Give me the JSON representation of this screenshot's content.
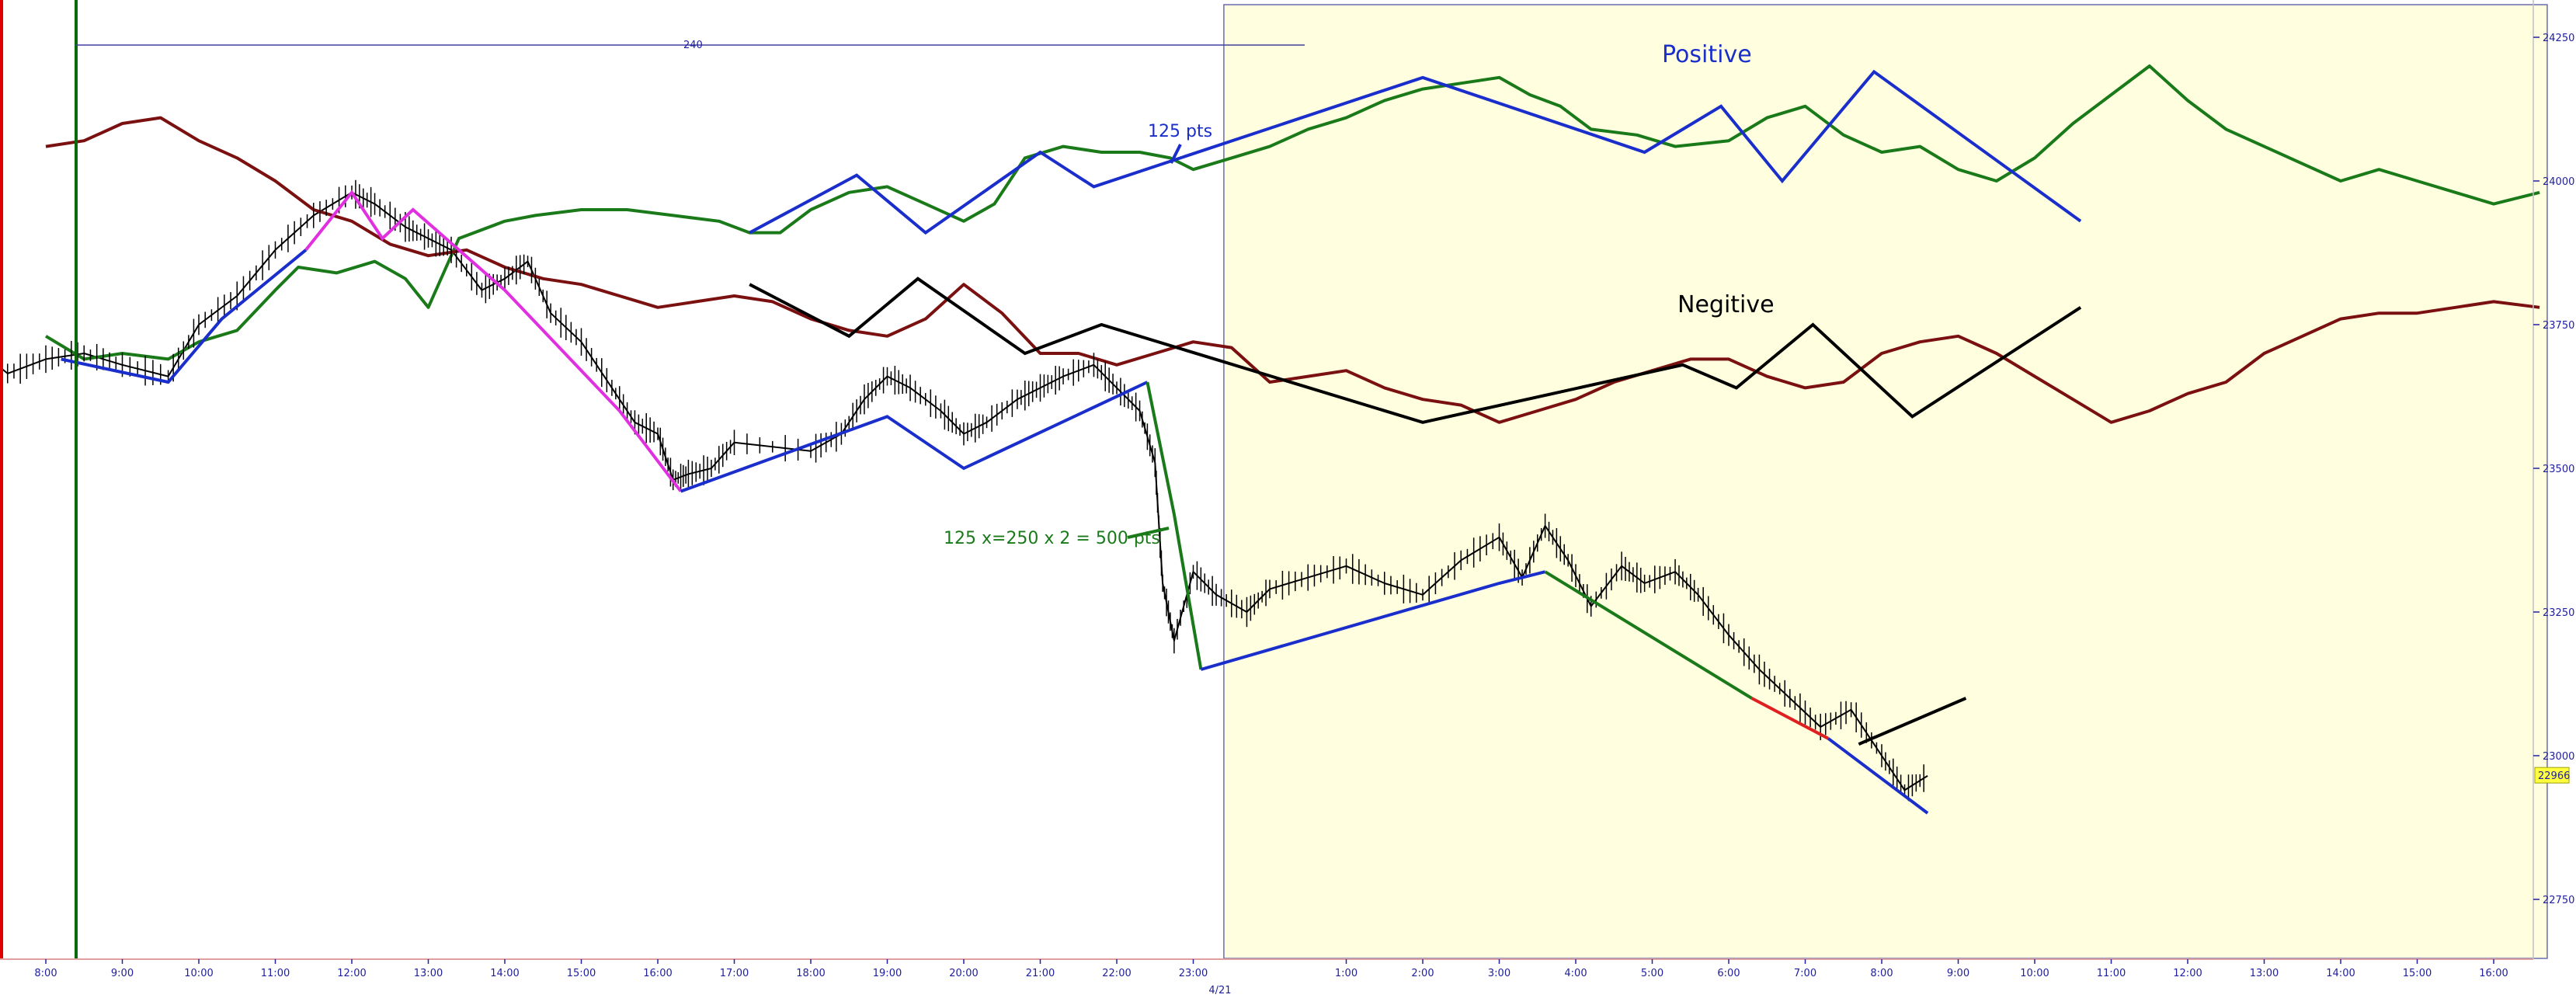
{
  "chart_data": {
    "type": "line",
    "title": "",
    "xlabel": "",
    "ylabel": "",
    "ylim": [
      22680,
      24330
    ],
    "y_ticks": [
      "24250",
      "24000",
      "23750",
      "23500",
      "23250",
      "23000",
      "22750"
    ],
    "x_ticks": [
      "8:00",
      "9:00",
      "10:00",
      "11:00",
      "12:00",
      "13:00",
      "14:00",
      "15:00",
      "16:00",
      "17:00",
      "18:00",
      "19:00",
      "20:00",
      "21:00",
      "22:00",
      "23:00",
      "1:00",
      "2:00",
      "3:00",
      "4:00",
      "5:00",
      "6:00",
      "7:00",
      "8:00",
      "9:00",
      "10:00",
      "11:00",
      "12:00",
      "13:00",
      "14:00",
      "15:00",
      "16:00"
    ],
    "x_tick_hours": [
      8,
      9,
      10,
      11,
      12,
      13,
      14,
      15,
      16,
      17,
      18,
      19,
      20,
      21,
      22,
      23,
      25,
      26,
      27,
      28,
      29,
      30,
      31,
      32,
      33,
      34,
      35,
      36,
      37,
      38,
      39,
      40
    ],
    "date_label": "4/21",
    "date_label_hour": 23.35,
    "last_price": "22966",
    "range_bar_label": "240",
    "highlight_region": {
      "from_hour": 23.4,
      "to_hour": 40.7,
      "color": "#ffffe0"
    },
    "colors": {
      "price": "#000000",
      "positive": "#1a7a1a",
      "negative": "#7a1010",
      "trend_blue": "#1a2ecc",
      "trend_black": "#000000",
      "magenta": "#e030e0",
      "green_line": "#1a7a1a",
      "red": "#e02020",
      "axis": "#2020a0",
      "session_green": "#0a6a0a",
      "session_red": "#e00000",
      "tag_bg": "#ffff40"
    },
    "annotations": {
      "positive_label": "Positive",
      "negative_label": "Negitive",
      "pts_label": "125 pts",
      "calc_label": "125 x=250 x 2 = 500 pts"
    },
    "series": [
      {
        "key": "price",
        "points": [
          [
            7.0,
            23720
          ],
          [
            7.5,
            23665
          ],
          [
            8.0,
            23690
          ],
          [
            8.5,
            23700
          ],
          [
            9.0,
            23680
          ],
          [
            9.6,
            23660
          ],
          [
            10.0,
            23750
          ],
          [
            10.5,
            23800
          ],
          [
            11.0,
            23880
          ],
          [
            11.5,
            23940
          ],
          [
            12.0,
            23980
          ],
          [
            12.3,
            23960
          ],
          [
            12.7,
            23920
          ],
          [
            13.0,
            23900
          ],
          [
            13.3,
            23880
          ],
          [
            13.7,
            23810
          ],
          [
            14.0,
            23830
          ],
          [
            14.3,
            23860
          ],
          [
            14.6,
            23770
          ],
          [
            15.0,
            23720
          ],
          [
            15.4,
            23640
          ],
          [
            15.7,
            23580
          ],
          [
            16.0,
            23560
          ],
          [
            16.2,
            23480
          ],
          [
            16.4,
            23490
          ],
          [
            16.7,
            23500
          ],
          [
            17.0,
            23545
          ],
          [
            18.0,
            23530
          ],
          [
            18.4,
            23560
          ],
          [
            18.7,
            23620
          ],
          [
            19.0,
            23660
          ],
          [
            19.3,
            23640
          ],
          [
            19.7,
            23600
          ],
          [
            20.0,
            23560
          ],
          [
            20.3,
            23580
          ],
          [
            20.7,
            23620
          ],
          [
            21.0,
            23640
          ],
          [
            21.3,
            23660
          ],
          [
            21.7,
            23680
          ],
          [
            22.0,
            23640
          ],
          [
            22.3,
            23600
          ],
          [
            22.5,
            23510
          ],
          [
            22.6,
            23300
          ],
          [
            22.75,
            23200
          ],
          [
            23.0,
            23320
          ],
          [
            23.3,
            23280
          ],
          [
            23.7,
            23250
          ],
          [
            24.0,
            23290
          ],
          [
            24.5,
            23310
          ],
          [
            25.0,
            23330
          ],
          [
            25.5,
            23300
          ],
          [
            26.0,
            23280
          ],
          [
            26.5,
            23340
          ],
          [
            27.0,
            23380
          ],
          [
            27.3,
            23310
          ],
          [
            27.6,
            23400
          ],
          [
            27.9,
            23340
          ],
          [
            28.2,
            23260
          ],
          [
            28.6,
            23330
          ],
          [
            28.9,
            23300
          ],
          [
            29.3,
            23320
          ],
          [
            29.6,
            23280
          ],
          [
            30.0,
            23210
          ],
          [
            30.4,
            23150
          ],
          [
            30.8,
            23100
          ],
          [
            31.2,
            23050
          ],
          [
            31.6,
            23080
          ],
          [
            32.0,
            23000
          ],
          [
            32.3,
            22940
          ],
          [
            32.6,
            22965
          ]
        ]
      },
      {
        "key": "positive",
        "points": [
          [
            8.0,
            23730
          ],
          [
            8.5,
            23690
          ],
          [
            9.0,
            23700
          ],
          [
            9.6,
            23690
          ],
          [
            10.0,
            23720
          ],
          [
            10.5,
            23740
          ],
          [
            11.0,
            23810
          ],
          [
            11.3,
            23850
          ],
          [
            11.8,
            23840
          ],
          [
            12.3,
            23860
          ],
          [
            12.7,
            23830
          ],
          [
            13.0,
            23780
          ],
          [
            13.4,
            23900
          ],
          [
            14.0,
            23930
          ],
          [
            14.4,
            23940
          ],
          [
            15.0,
            23950
          ],
          [
            15.6,
            23950
          ],
          [
            16.2,
            23940
          ],
          [
            16.8,
            23930
          ],
          [
            17.2,
            23910
          ],
          [
            17.6,
            23910
          ],
          [
            18.0,
            23950
          ],
          [
            18.5,
            23980
          ],
          [
            19.0,
            23990
          ],
          [
            19.5,
            23960
          ],
          [
            20.0,
            23930
          ],
          [
            20.4,
            23960
          ],
          [
            20.8,
            24040
          ],
          [
            21.3,
            24060
          ],
          [
            21.8,
            24050
          ],
          [
            22.3,
            24050
          ],
          [
            22.7,
            24040
          ],
          [
            23.0,
            24020
          ],
          [
            23.5,
            24040
          ],
          [
            24.0,
            24060
          ],
          [
            24.5,
            24090
          ],
          [
            25.0,
            24110
          ],
          [
            25.5,
            24140
          ],
          [
            26.0,
            24160
          ],
          [
            26.5,
            24170
          ],
          [
            27.0,
            24180
          ],
          [
            27.4,
            24150
          ],
          [
            27.8,
            24130
          ],
          [
            28.2,
            24090
          ],
          [
            28.8,
            24080
          ],
          [
            29.3,
            24060
          ],
          [
            30.0,
            24070
          ],
          [
            30.5,
            24110
          ],
          [
            31.0,
            24130
          ],
          [
            31.5,
            24080
          ],
          [
            32.0,
            24050
          ],
          [
            32.5,
            24060
          ],
          [
            33.0,
            24020
          ],
          [
            33.5,
            24000
          ],
          [
            34.0,
            24040
          ],
          [
            34.5,
            24100
          ],
          [
            35.0,
            24150
          ],
          [
            35.5,
            24200
          ],
          [
            36.0,
            24140
          ],
          [
            36.5,
            24090
          ],
          [
            37.0,
            24060
          ],
          [
            37.5,
            24030
          ],
          [
            38.0,
            24000
          ],
          [
            38.5,
            24020
          ],
          [
            39.0,
            24000
          ],
          [
            39.5,
            23980
          ],
          [
            40.0,
            23960
          ],
          [
            40.6,
            23980
          ]
        ]
      },
      {
        "key": "negative",
        "points": [
          [
            8.0,
            24060
          ],
          [
            8.5,
            24070
          ],
          [
            9.0,
            24100
          ],
          [
            9.5,
            24110
          ],
          [
            10.0,
            24070
          ],
          [
            10.5,
            24040
          ],
          [
            11.0,
            24000
          ],
          [
            11.5,
            23950
          ],
          [
            12.0,
            23930
          ],
          [
            12.5,
            23890
          ],
          [
            13.0,
            23870
          ],
          [
            13.5,
            23880
          ],
          [
            14.0,
            23850
          ],
          [
            14.5,
            23830
          ],
          [
            15.0,
            23820
          ],
          [
            15.5,
            23800
          ],
          [
            16.0,
            23780
          ],
          [
            16.5,
            23790
          ],
          [
            17.0,
            23800
          ],
          [
            17.5,
            23790
          ],
          [
            18.0,
            23760
          ],
          [
            18.5,
            23740
          ],
          [
            19.0,
            23730
          ],
          [
            19.5,
            23760
          ],
          [
            20.0,
            23820
          ],
          [
            20.5,
            23770
          ],
          [
            21.0,
            23700
          ],
          [
            21.5,
            23700
          ],
          [
            22.0,
            23680
          ],
          [
            22.5,
            23700
          ],
          [
            23.0,
            23720
          ],
          [
            23.5,
            23710
          ],
          [
            24.0,
            23650
          ],
          [
            24.5,
            23660
          ],
          [
            25.0,
            23670
          ],
          [
            25.5,
            23640
          ],
          [
            26.0,
            23620
          ],
          [
            26.5,
            23610
          ],
          [
            27.0,
            23580
          ],
          [
            27.5,
            23600
          ],
          [
            28.0,
            23620
          ],
          [
            28.5,
            23650
          ],
          [
            29.0,
            23670
          ],
          [
            29.5,
            23690
          ],
          [
            30.0,
            23690
          ],
          [
            30.5,
            23660
          ],
          [
            31.0,
            23640
          ],
          [
            31.5,
            23650
          ],
          [
            32.0,
            23700
          ],
          [
            32.5,
            23720
          ],
          [
            33.0,
            23730
          ],
          [
            33.5,
            23700
          ],
          [
            34.0,
            23660
          ],
          [
            34.5,
            23620
          ],
          [
            35.0,
            23580
          ],
          [
            35.5,
            23600
          ],
          [
            36.0,
            23630
          ],
          [
            36.5,
            23650
          ],
          [
            37.0,
            23700
          ],
          [
            37.5,
            23730
          ],
          [
            38.0,
            23760
          ],
          [
            38.5,
            23770
          ],
          [
            39.0,
            23770
          ],
          [
            39.5,
            23780
          ],
          [
            40.0,
            23790
          ],
          [
            40.6,
            23780
          ]
        ]
      }
    ],
    "trendlines": [
      {
        "color_key": "trend_blue",
        "width": 4,
        "points": [
          [
            8.2,
            23690
          ],
          [
            9.6,
            23650
          ],
          [
            10.3,
            23760
          ],
          [
            11.4,
            23880
          ]
        ]
      },
      {
        "color_key": "magenta",
        "width": 4,
        "points": [
          [
            11.4,
            23880
          ],
          [
            12.0,
            23980
          ],
          [
            12.4,
            23900
          ],
          [
            12.8,
            23950
          ],
          [
            14.0,
            23810
          ],
          [
            15.5,
            23600
          ],
          [
            16.3,
            23460
          ]
        ]
      },
      {
        "color_key": "trend_blue",
        "width": 4,
        "points": [
          [
            16.3,
            23460
          ],
          [
            19.0,
            23590
          ],
          [
            20.0,
            23500
          ],
          [
            22.4,
            23650
          ]
        ]
      },
      {
        "color_key": "green_line",
        "width": 4,
        "points": [
          [
            22.4,
            23650
          ],
          [
            22.75,
            23420
          ],
          [
            23.1,
            23150
          ]
        ]
      },
      {
        "color_key": "trend_blue",
        "width": 4,
        "points": [
          [
            23.1,
            23150
          ],
          [
            27.0,
            23300
          ],
          [
            27.6,
            23320
          ]
        ]
      },
      {
        "color_key": "green_line",
        "width": 4,
        "points": [
          [
            27.6,
            23320
          ],
          [
            30.3,
            23100
          ]
        ]
      },
      {
        "color_key": "red",
        "width": 4,
        "points": [
          [
            30.3,
            23100
          ],
          [
            31.3,
            23030
          ]
        ]
      },
      {
        "color_key": "trend_blue",
        "width": 4,
        "points": [
          [
            31.3,
            23030
          ],
          [
            32.6,
            22900
          ]
        ]
      },
      {
        "color_key": "trend_black",
        "width": 4,
        "points": [
          [
            31.7,
            23020
          ],
          [
            32.4,
            23060
          ],
          [
            33.1,
            23100
          ]
        ]
      },
      {
        "color_key": "trend_blue",
        "width": 4,
        "points": [
          [
            17.2,
            23910
          ],
          [
            18.6,
            24010
          ],
          [
            19.5,
            23910
          ],
          [
            21.0,
            24050
          ],
          [
            21.7,
            23990
          ],
          [
            26.0,
            24180
          ],
          [
            28.9,
            24050
          ],
          [
            29.9,
            24130
          ],
          [
            30.7,
            24000
          ],
          [
            31.9,
            24190
          ],
          [
            34.6,
            23930
          ]
        ]
      },
      {
        "color_key": "trend_black",
        "width": 4,
        "points": [
          [
            17.2,
            23820
          ],
          [
            18.5,
            23730
          ],
          [
            19.4,
            23830
          ],
          [
            20.8,
            23700
          ],
          [
            21.8,
            23750
          ],
          [
            26.0,
            23580
          ],
          [
            29.4,
            23680
          ],
          [
            30.1,
            23640
          ],
          [
            31.1,
            23750
          ],
          [
            32.4,
            23590
          ],
          [
            34.6,
            23780
          ]
        ]
      }
    ]
  }
}
